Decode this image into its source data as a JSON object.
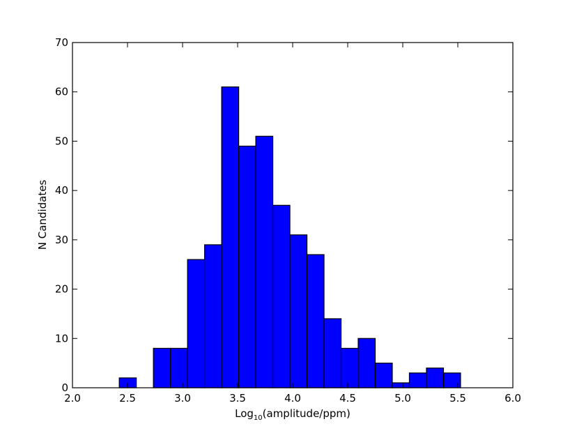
{
  "chart_data": {
    "type": "bar",
    "title": "",
    "xlabel": {
      "prefix": "Log",
      "subscript": "10",
      "suffix": "(amplitude/ppm)"
    },
    "ylabel": "N Candidates",
    "xlim": [
      2.0,
      6.0
    ],
    "ylim": [
      0,
      70
    ],
    "xticks": [
      "2.0",
      "2.5",
      "3.0",
      "3.5",
      "4.0",
      "4.5",
      "5.0",
      "5.5",
      "6.0"
    ],
    "yticks": [
      "0",
      "10",
      "20",
      "30",
      "40",
      "50",
      "60",
      "70"
    ],
    "grid": false,
    "legend": "none",
    "bar_color": "#0000ff",
    "bin_width": 0.155,
    "bins": [
      {
        "x0": 2.425,
        "count": 2
      },
      {
        "x0": 2.735,
        "count": 8
      },
      {
        "x0": 2.89,
        "count": 8
      },
      {
        "x0": 3.045,
        "count": 26
      },
      {
        "x0": 3.2,
        "count": 29
      },
      {
        "x0": 3.355,
        "count": 61
      },
      {
        "x0": 3.51,
        "count": 49
      },
      {
        "x0": 3.665,
        "count": 51
      },
      {
        "x0": 3.82,
        "count": 37
      },
      {
        "x0": 3.975,
        "count": 31
      },
      {
        "x0": 4.13,
        "count": 27
      },
      {
        "x0": 4.285,
        "count": 14
      },
      {
        "x0": 4.44,
        "count": 8
      },
      {
        "x0": 4.595,
        "count": 10
      },
      {
        "x0": 4.75,
        "count": 5
      },
      {
        "x0": 4.905,
        "count": 1
      },
      {
        "x0": 5.06,
        "count": 3
      },
      {
        "x0": 5.215,
        "count": 4
      },
      {
        "x0": 5.37,
        "count": 3
      }
    ]
  }
}
